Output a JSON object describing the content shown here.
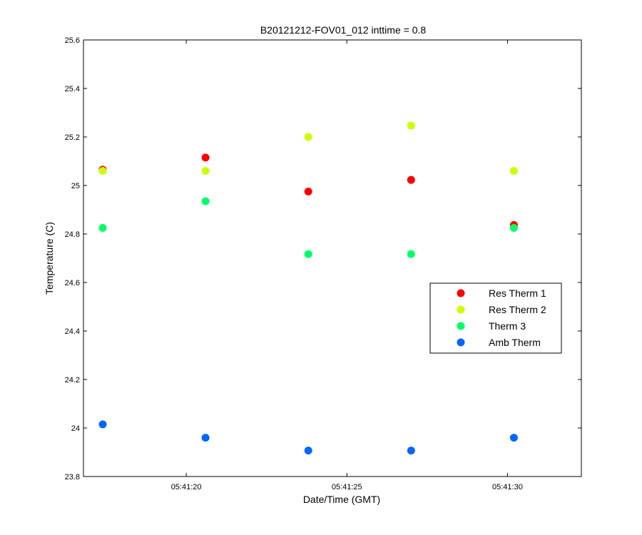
{
  "chart_data": {
    "type": "scatter",
    "title": "B20121212-FOV01_012 inttime = 0.8",
    "xlabel": "Date/Time (GMT)",
    "ylabel": "Temperature (C)",
    "x_tick_labels": [
      "05:41:20",
      "05:41:25",
      "05:41:30"
    ],
    "y_ticks": [
      23.8,
      24,
      24.2,
      24.4,
      24.6,
      24.8,
      25,
      25.2,
      25.4,
      25.6
    ],
    "y_tick_labels": [
      "23.8",
      "24",
      "24.2",
      "24.4",
      "24.6",
      "24.8",
      "25",
      "25.2",
      "25.4",
      "25.6"
    ],
    "ylim": [
      23.8,
      25.6
    ],
    "xlim": [
      "05:41:16.8",
      "05:41:32.3"
    ],
    "x_ticks": [
      "05:41:20",
      "05:41:25",
      "05:41:30"
    ],
    "x": [
      "05:41:17.4",
      "05:41:20.6",
      "05:41:23.8",
      "05:41:27.0",
      "05:41:30.2"
    ],
    "grid": false,
    "legend_position": "right",
    "series": [
      {
        "name": "Res Therm 1",
        "color": "#ff0000",
        "values": [
          25.065,
          25.115,
          24.975,
          25.023,
          24.837
        ]
      },
      {
        "name": "Res Therm 2",
        "color": "#ccff00",
        "values": [
          25.06,
          25.06,
          25.2,
          25.247,
          25.06
        ]
      },
      {
        "name": "Therm 3",
        "color": "#00ff66",
        "values": [
          24.825,
          24.935,
          24.717,
          24.717,
          24.825
        ]
      },
      {
        "name": "Amb Therm",
        "color": "#0066ff",
        "values": [
          24.015,
          23.96,
          23.907,
          23.907,
          23.96
        ]
      }
    ]
  }
}
